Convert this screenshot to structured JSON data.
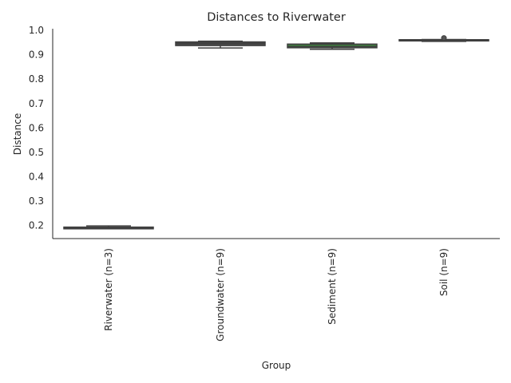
{
  "chart_data": {
    "type": "box",
    "title": "Distances to Riverwater",
    "xlabel": "Group",
    "ylabel": "Distance",
    "ylim": [
      0.145,
      1.005
    ],
    "yticks": [
      0.2,
      0.3,
      0.4,
      0.5,
      0.6,
      0.7,
      0.8,
      0.9,
      1.0
    ],
    "ytick_labels": [
      "0.2",
      "0.3",
      "0.4",
      "0.5",
      "0.6",
      "0.7",
      "0.8",
      "0.9",
      "1.0"
    ],
    "categories": [
      "Riverwater (n=3)",
      "Groundwater (n=9)",
      "Sediment (n=9)",
      "Soil (n=9)"
    ],
    "boxes": [
      {
        "category": "Riverwater (n=3)",
        "whisker_low": 0.185,
        "q1": 0.185,
        "median": 0.19,
        "q3": 0.192,
        "whisker_high": 0.197,
        "outliers": [],
        "color": "#3a3a5a"
      },
      {
        "category": "Groundwater (n=9)",
        "whisker_low": 0.926,
        "q1": 0.936,
        "median": 0.945,
        "q3": 0.951,
        "whisker_high": 0.954,
        "outliers": [],
        "color": "#4a4a4a"
      },
      {
        "category": "Sediment (n=9)",
        "whisker_low": 0.921,
        "q1": 0.927,
        "median": 0.932,
        "q3": 0.942,
        "whisker_high": 0.947,
        "outliers": [],
        "color": "#3f7a3f"
      },
      {
        "category": "Soil (n=9)",
        "whisker_low": 0.953,
        "q1": 0.956,
        "median": 0.958,
        "q3": 0.96,
        "whisker_high": 0.961,
        "outliers": [
          0.967
        ],
        "color": "#6a3a3a"
      }
    ],
    "grid": false,
    "legend": "none"
  }
}
